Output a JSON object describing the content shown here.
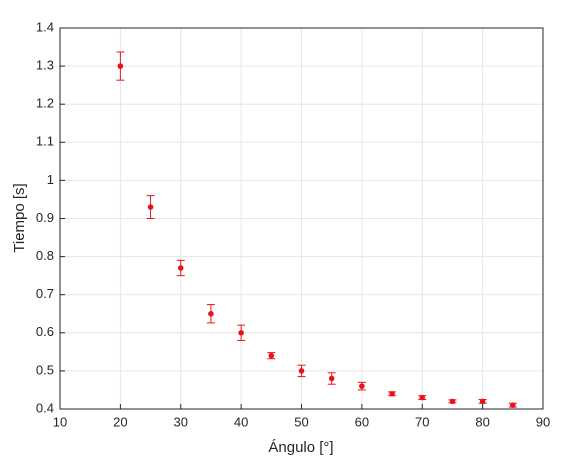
{
  "chart_data": {
    "type": "scatter",
    "x_label": "Ángulo [°]",
    "y_label": "Tiempo [s]",
    "series": [
      {
        "color": "#e8141b",
        "x": [
          20,
          25,
          30,
          35,
          40,
          45,
          50,
          55,
          60,
          65,
          70,
          75,
          80,
          85
        ],
        "values": [
          1.3,
          0.93,
          0.77,
          0.65,
          0.6,
          0.54,
          0.5,
          0.48,
          0.46,
          0.44,
          0.43,
          0.42,
          0.42,
          0.41
        ],
        "errors": [
          0.037,
          0.03,
          0.02,
          0.024,
          0.02,
          0.008,
          0.015,
          0.015,
          0.01,
          0.005,
          0.005,
          0.004,
          0.005,
          0.005
        ]
      }
    ],
    "xlim": [
      10,
      90
    ],
    "xticks": [
      10,
      20,
      30,
      40,
      50,
      60,
      70,
      80,
      90
    ],
    "ylim": [
      0.4,
      1.4
    ],
    "yticks": [
      0.4,
      0.5,
      0.6,
      0.7,
      0.8,
      0.9,
      1,
      1.1,
      1.2,
      1.3,
      1.4
    ],
    "grid": true
  }
}
